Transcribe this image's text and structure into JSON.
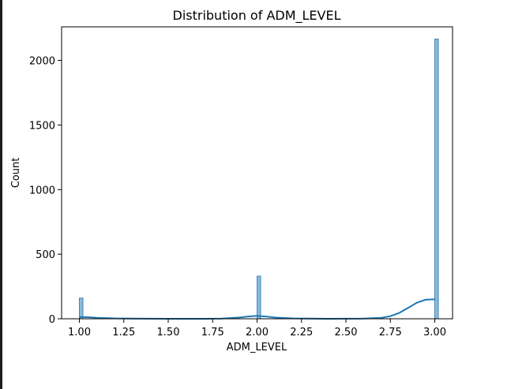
{
  "chart_data": {
    "type": "histogram",
    "title": "Distribution of ADM_LEVEL",
    "xlabel": "ADM_LEVEL",
    "ylabel": "Count",
    "xlim": [
      0.9,
      3.1
    ],
    "ylim": [
      0,
      2260
    ],
    "xticks": [
      1.0,
      1.25,
      1.5,
      1.75,
      2.0,
      2.25,
      2.5,
      2.75,
      3.0
    ],
    "xtick_labels": [
      "1.00",
      "1.25",
      "1.50",
      "1.75",
      "2.00",
      "2.25",
      "2.50",
      "2.75",
      "3.00"
    ],
    "yticks": [
      0,
      500,
      1000,
      1500,
      2000
    ],
    "ytick_labels": [
      "0",
      "500",
      "1000",
      "1500",
      "2000"
    ],
    "bin_width": 0.02,
    "bars": [
      {
        "x": 1.0,
        "count": 160
      },
      {
        "x": 2.0,
        "count": 330
      },
      {
        "x": 3.0,
        "count": 2165
      }
    ],
    "kde": {
      "x": [
        1.0,
        1.05,
        1.1,
        1.2,
        1.3,
        1.5,
        1.7,
        1.8,
        1.9,
        1.95,
        2.0,
        2.05,
        2.1,
        2.2,
        2.4,
        2.6,
        2.7,
        2.75,
        2.8,
        2.85,
        2.9,
        2.95,
        3.0
      ],
      "y": [
        14,
        12,
        8,
        3,
        1,
        0,
        0,
        2,
        10,
        18,
        22,
        18,
        10,
        3,
        0,
        2,
        8,
        20,
        45,
        85,
        125,
        148,
        150
      ]
    },
    "grid": false,
    "legend": "none",
    "bar_color": "#1f77b4",
    "bar_alpha": 0.5,
    "line_color": "#1f77b4"
  }
}
